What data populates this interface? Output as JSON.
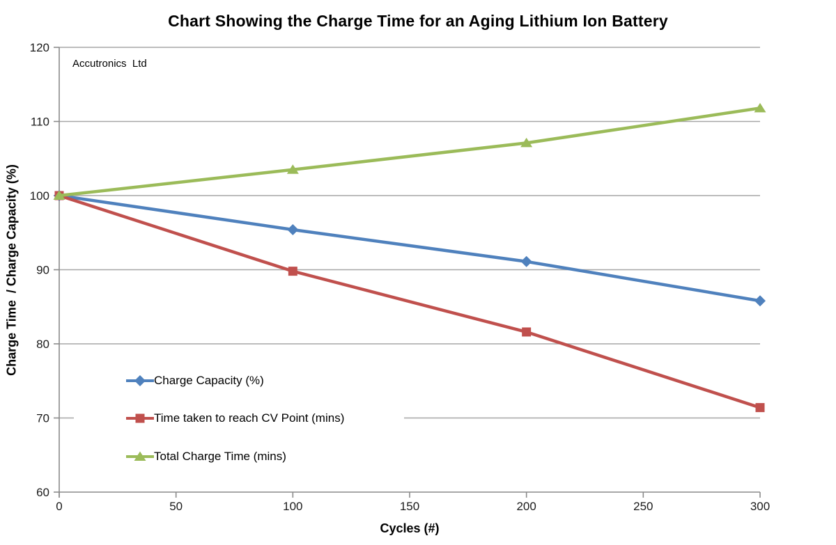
{
  "chart_data": {
    "type": "line",
    "title": "Chart Showing the Charge Time for an Aging Lithium Ion Battery",
    "annotation": "Accutronics  Ltd",
    "xlabel": "Cycles (#)",
    "ylabel": "Charge Time  / Charge Capacity (%)",
    "xlim": [
      0,
      300
    ],
    "ylim": [
      60,
      120
    ],
    "xticks": [
      0,
      50,
      100,
      150,
      200,
      250,
      300
    ],
    "yticks": [
      60,
      70,
      80,
      90,
      100,
      110,
      120
    ],
    "grid": true,
    "legend_position": "inside-bottom-left",
    "x": [
      0,
      100,
      200,
      300
    ],
    "series": [
      {
        "name": "Charge Capacity (%)",
        "marker": "diamond",
        "color": "#4F81BD",
        "values": [
          100,
          95.4,
          91.1,
          85.8
        ]
      },
      {
        "name": "Time taken to reach CV Point (mins)",
        "marker": "square",
        "color": "#C0504D",
        "values": [
          100,
          89.8,
          81.6,
          71.4
        ]
      },
      {
        "name": "Total Charge Time (mins)",
        "marker": "triangle",
        "color": "#9BBB59",
        "values": [
          100,
          103.5,
          107.1,
          111.8
        ]
      }
    ],
    "colors": {
      "gridline": "#A6A6A6",
      "axis": "#8A8A8A",
      "tick_text": "#1a1a1a",
      "background": "#ffffff"
    }
  }
}
